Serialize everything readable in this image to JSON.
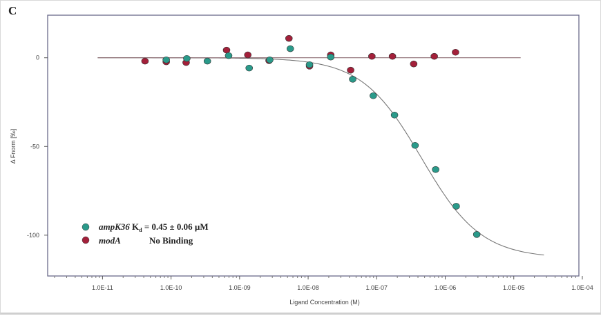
{
  "chart_data": {
    "type": "scatter",
    "panel_label": "C",
    "title": "",
    "xlabel": "Ligand Concentration (M)",
    "ylabel": "Δ Fnorm [‰]",
    "xscale": "log",
    "xlim_log10": [
      -11.8,
      -4.05
    ],
    "ylim": [
      -123,
      24
    ],
    "x_ticks": [
      -11,
      -10,
      -9,
      -8,
      -7,
      -6,
      -5,
      -4
    ],
    "x_tick_labels": [
      "1.0E-11",
      "1.0E-10",
      "1.0E-09",
      "1.0E-08",
      "1.0E-07",
      "1.0E-06",
      "1.0E-05",
      "1.0E-04"
    ],
    "y_ticks": [
      0,
      -50,
      -100
    ],
    "y_tick_labels": [
      "0",
      "-50",
      "-100"
    ],
    "grid": false,
    "legend_position": "bottom-left",
    "series": [
      {
        "name": "ampK36",
        "legend_note": "K",
        "legend_sub": "d",
        "legend_value": " = 0.45 ± 0.06 µM",
        "color": "#2a9a8a",
        "log10_x": [
          -10.07,
          -9.77,
          -9.47,
          -9.16,
          -8.86,
          -8.56,
          -8.26,
          -7.98,
          -7.67,
          -7.35,
          -7.05,
          -6.74,
          -6.44,
          -6.14,
          -5.84,
          -5.54
        ],
        "y": [
          -1.2,
          -0.4,
          -1.9,
          1.2,
          -5.8,
          -1.2,
          5.1,
          -3.9,
          0.4,
          -12.1,
          -21.4,
          -32.3,
          -49.4,
          -63.0,
          -83.7,
          -99.6
        ],
        "fit": {
          "model": "binding",
          "Kd_M": 4.5e-07,
          "amplitude": -113,
          "log10_range": [
            -11.07,
            -4.56
          ]
        }
      },
      {
        "name": "modA",
        "legend_value": "No Binding",
        "color": "#a3203a",
        "log10_x": [
          -10.38,
          -10.07,
          -9.78,
          -9.19,
          -8.88,
          -8.57,
          -8.28,
          -7.98,
          -7.67,
          -7.38,
          -7.07,
          -6.77,
          -6.46,
          -6.16,
          -5.85
        ],
        "y": [
          -1.9,
          -2.3,
          -2.7,
          4.3,
          1.6,
          -1.6,
          10.9,
          -4.7,
          1.6,
          -7.0,
          0.8,
          0.8,
          -3.5,
          0.8,
          3.1
        ],
        "fit": {
          "model": "flat",
          "value": 0,
          "log10_range": [
            -11.07,
            -4.9
          ]
        }
      }
    ]
  }
}
